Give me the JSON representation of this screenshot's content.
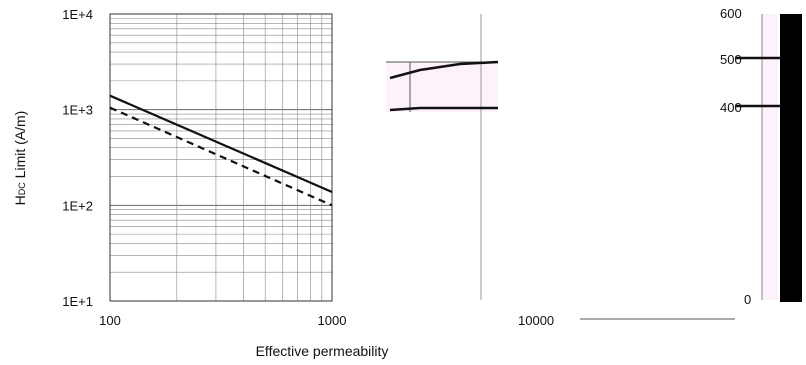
{
  "chart_data": {
    "type": "line",
    "xlabel": "Effective permeability",
    "ylabel": "H",
    "ylabel_sub": "DC",
    "ylabel_rest": " Limit (A/m)",
    "x_scale": "log",
    "y_scale": "log",
    "xlim": [
      100,
      1000
    ],
    "ylim": [
      10,
      10000
    ],
    "y_ticks": [
      {
        "value": 10,
        "label": "1E+1"
      },
      {
        "value": 100,
        "label": "1E+2"
      },
      {
        "value": 1000,
        "label": "1E+3"
      },
      {
        "value": 10000,
        "label": "1E+4"
      }
    ],
    "x_ticks": [
      {
        "value": 100,
        "label": "100"
      },
      {
        "value": 1000,
        "label": "1000"
      }
    ],
    "grid": true,
    "series": [
      {
        "style": "solid",
        "x": [
          100,
          1000
        ],
        "y": [
          1400,
          138
        ]
      },
      {
        "style": "dashed",
        "x": [
          100,
          1000
        ],
        "y": [
          1050,
          100
        ]
      }
    ],
    "overlap_fragments": {
      "right_y_ticks": [
        "600",
        "500",
        "400",
        "0"
      ],
      "x_fragments": [
        "10000"
      ],
      "upper_curve": [
        [
          390,
          78
        ],
        [
          420,
          70
        ],
        [
          460,
          64
        ],
        [
          498,
          62
        ]
      ],
      "lower_curve": [
        [
          390,
          110
        ],
        [
          420,
          108
        ],
        [
          460,
          108
        ],
        [
          498,
          108
        ]
      ]
    },
    "colors": {
      "line": "#111111",
      "grid": "#666666",
      "minor_grid": "#8a8a8a",
      "pink_panel": "#fdf1fb",
      "dark_bar": "#000000"
    }
  }
}
